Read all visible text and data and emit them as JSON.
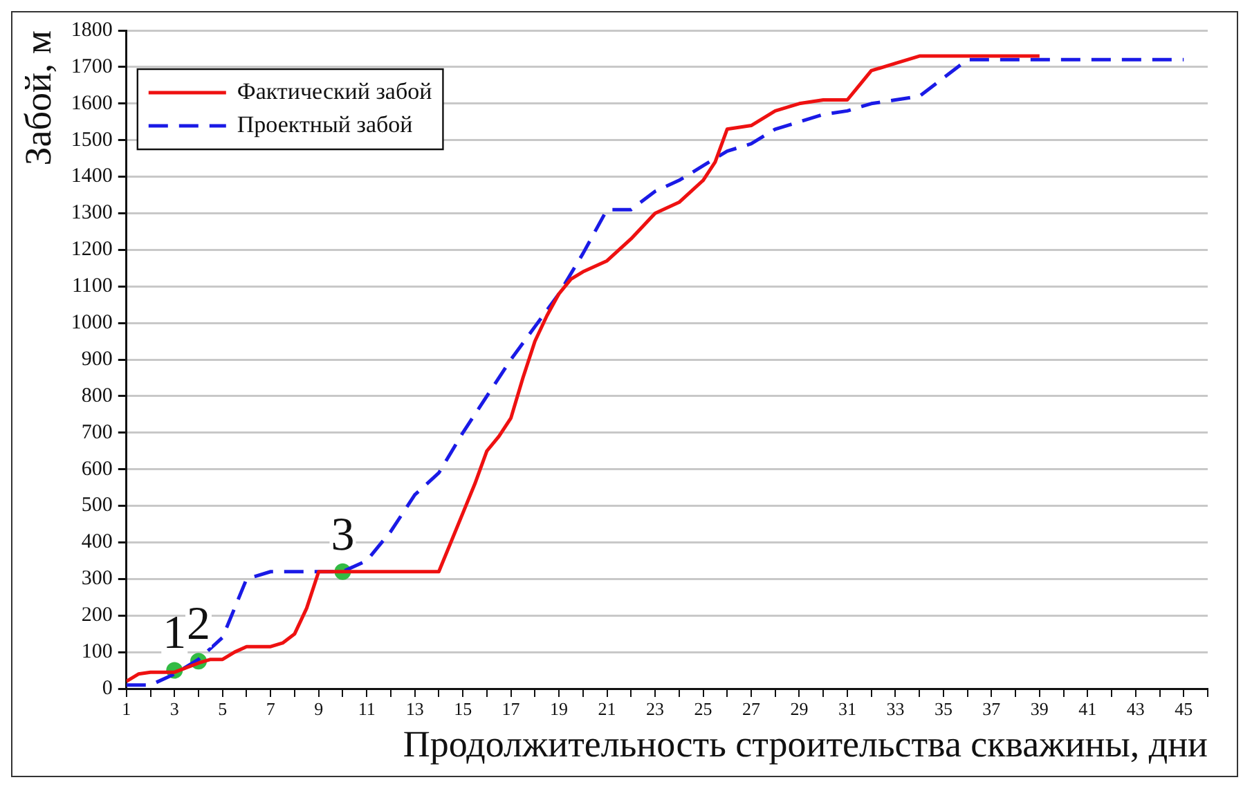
{
  "chart_data": {
    "type": "line",
    "xlabel": "Продолжительность строительства скважины, дни",
    "ylabel": "Забой, м",
    "xlim": [
      1,
      46
    ],
    "xticks": [
      1,
      {
        "value": 2,
        "label": null
      },
      3,
      {
        "value": 4,
        "label": null
      },
      5,
      {
        "value": 6,
        "label": null
      },
      7,
      {
        "value": 8,
        "label": null
      },
      9,
      {
        "value": 10,
        "label": null
      },
      11,
      {
        "value": 12,
        "label": null
      },
      13,
      {
        "value": 14,
        "label": null
      },
      15,
      {
        "value": 16,
        "label": null
      },
      17,
      {
        "value": 18,
        "label": null
      },
      19,
      {
        "value": 20,
        "label": null
      },
      21,
      {
        "value": 22,
        "label": null
      },
      23,
      {
        "value": 24,
        "label": null
      },
      25,
      {
        "value": 26,
        "label": null
      },
      27,
      {
        "value": 28,
        "label": null
      },
      29,
      {
        "value": 30,
        "label": null
      },
      31,
      {
        "value": 32,
        "label": null
      },
      33,
      {
        "value": 34,
        "label": null
      },
      35,
      {
        "value": 36,
        "label": null
      },
      37,
      {
        "value": 38,
        "label": null
      },
      39,
      {
        "value": 40,
        "label": null
      },
      41,
      {
        "value": 42,
        "label": null
      },
      43,
      {
        "value": 44,
        "label": null
      },
      45,
      {
        "value": 46,
        "label": null
      }
    ],
    "ylim": [
      0,
      1800
    ],
    "yticks": [
      0,
      100,
      200,
      300,
      400,
      500,
      600,
      700,
      800,
      900,
      1000,
      1100,
      1200,
      1300,
      1400,
      1500,
      1600,
      1700,
      1800
    ],
    "grid": "y",
    "legend": "top left",
    "marker": "none",
    "series": [
      {
        "name": "Фактический забой",
        "color": "#ee1111",
        "line_style": "solid",
        "x": [
          1,
          1.5,
          2,
          3,
          4,
          4.5,
          5,
          5.5,
          6,
          7,
          7.5,
          8,
          8.5,
          9,
          10,
          11,
          12,
          13,
          14,
          15,
          15.5,
          16,
          16.5,
          17,
          17.5,
          18,
          18.5,
          19,
          19.5,
          20,
          21,
          22,
          23,
          24,
          25,
          25.5,
          26,
          27,
          28,
          29,
          30,
          31,
          31.5,
          32,
          33,
          34,
          39
        ],
        "values": [
          20,
          40,
          45,
          45,
          70,
          80,
          80,
          100,
          115,
          115,
          125,
          150,
          220,
          320,
          320,
          320,
          320,
          320,
          320,
          480,
          560,
          650,
          690,
          740,
          850,
          950,
          1020,
          1080,
          1120,
          1140,
          1170,
          1230,
          1300,
          1330,
          1390,
          1440,
          1530,
          1540,
          1580,
          1600,
          1610,
          1610,
          1650,
          1690,
          1710,
          1730,
          1730
        ]
      },
      {
        "name": "Проектный забой",
        "color": "#1a1ae6",
        "line_style": "dashed",
        "x": [
          1,
          2,
          3,
          4,
          5,
          5.5,
          6,
          7,
          8,
          9,
          10,
          11,
          12,
          13,
          14,
          15,
          16,
          17,
          18,
          19,
          20,
          21,
          22,
          23,
          24,
          25,
          26,
          27,
          28,
          29,
          30,
          31,
          32,
          33,
          34,
          35,
          36,
          37,
          45
        ],
        "values": [
          10,
          10,
          40,
          80,
          140,
          220,
          300,
          320,
          320,
          320,
          320,
          350,
          430,
          530,
          590,
          700,
          800,
          900,
          990,
          1080,
          1190,
          1310,
          1310,
          1360,
          1390,
          1430,
          1470,
          1490,
          1530,
          1550,
          1570,
          1580,
          1600,
          1610,
          1620,
          1670,
          1720,
          1720,
          1720
        ]
      },
      {
        "type": "scatter",
        "color": "#33bb44",
        "marker": "circle",
        "x": [
          3,
          4,
          10
        ],
        "values": [
          50,
          75,
          320
        ]
      }
    ],
    "annotations": [
      {
        "text": "1",
        "x": 3,
        "y": 50
      },
      {
        "text": "2",
        "x": 4,
        "y": 75
      },
      {
        "text": "3",
        "x": 10,
        "y": 320
      }
    ]
  }
}
